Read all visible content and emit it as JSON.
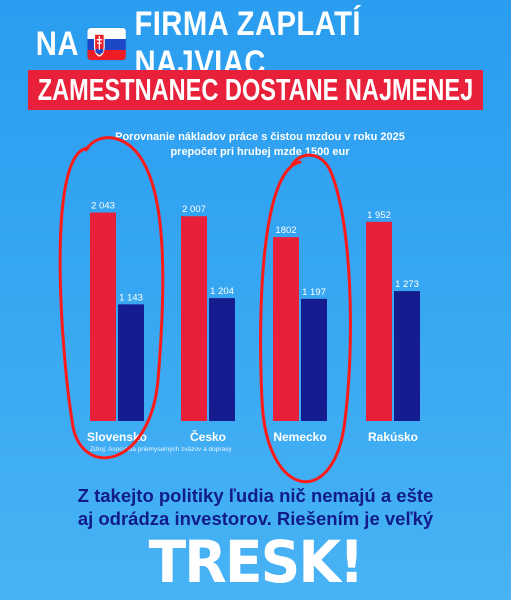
{
  "headline": {
    "prefix": "NA",
    "flag_icon": "slovakia-flag-icon",
    "suffix": "FIRMA ZAPLATÍ NAJVIAC",
    "banner": "ZAMESTNANEC DOSTANE NAJMENEJ"
  },
  "colors": {
    "background": "#37a7f2",
    "labor_cost": "#e8203a",
    "net_wage": "#141c8f",
    "banner": "#e8203a",
    "annotation": "#ff1a1a",
    "slogan": "#111b8a"
  },
  "chart_data": {
    "type": "bar",
    "title": "Porovnanie nákladov práce s čistou mzdou v roku 2025",
    "subtitle": "prepočet pri hrubej mzde 1500 eur",
    "categories": [
      "Slovensko",
      "Česko",
      "Nemecko",
      "Rakúsko"
    ],
    "series": [
      {
        "values": [
          2043,
          2007,
          1802,
          1952
        ],
        "labels": [
          "2 043",
          "2 007",
          "1802",
          "1 952"
        ]
      },
      {
        "values": [
          1143,
          1204,
          1197,
          1273
        ],
        "labels": [
          "1 143",
          "1 204",
          "1 197",
          "1 273"
        ]
      }
    ],
    "ylim": [
      0,
      2450
    ],
    "grid": false,
    "source": "Zdroj: Asociácia priemyselných zväzov a dopravy",
    "highlighted_categories": [
      "Slovensko",
      "Nemecko"
    ]
  },
  "slogan": {
    "line1": "Z takejto politiky ľudia nič nemajú a ešte",
    "line2": "aj odrádza investorov. Riešením je veľký"
  },
  "brand": {
    "name": "TRESK!"
  }
}
